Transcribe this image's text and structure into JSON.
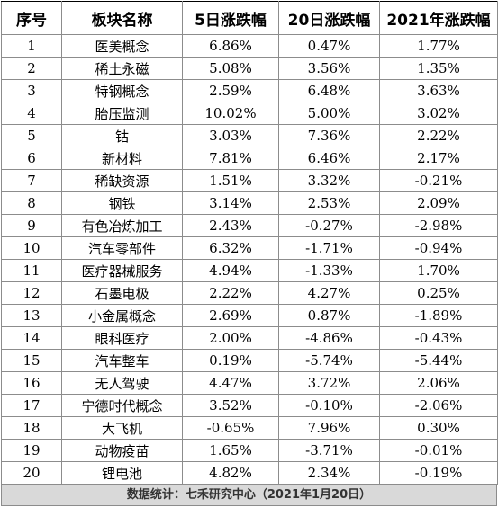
{
  "headers": [
    "序号",
    "板块名称",
    "5日涨跌幅",
    "20日涨跌幅",
    "2021年涨跌幅"
  ],
  "rows": [
    [
      "1",
      "医美概念",
      "6.86%",
      "0.47%",
      "1.77%"
    ],
    [
      "2",
      "稀土永磁",
      "5.08%",
      "3.56%",
      "1.35%"
    ],
    [
      "3",
      "特钢概念",
      "2.59%",
      "6.48%",
      "3.63%"
    ],
    [
      "4",
      "胎压监测",
      "10.02%",
      "5.00%",
      "3.02%"
    ],
    [
      "5",
      "钴",
      "3.03%",
      "7.36%",
      "2.22%"
    ],
    [
      "6",
      "新材料",
      "7.81%",
      "6.46%",
      "2.17%"
    ],
    [
      "7",
      "稀缺资源",
      "1.51%",
      "3.32%",
      "-0.21%"
    ],
    [
      "8",
      "钢铁",
      "3.14%",
      "2.53%",
      "2.09%"
    ],
    [
      "9",
      "有色冶炼加工",
      "2.43%",
      "-0.27%",
      "-2.98%"
    ],
    [
      "10",
      "汽车零部件",
      "6.32%",
      "-1.71%",
      "-0.94%"
    ],
    [
      "11",
      "医疗器械服务",
      "4.94%",
      "-1.33%",
      "1.70%"
    ],
    [
      "12",
      "石墨电极",
      "2.22%",
      "4.27%",
      "0.25%"
    ],
    [
      "13",
      "小金属概念",
      "2.69%",
      "0.87%",
      "-1.89%"
    ],
    [
      "14",
      "眼科医疗",
      "2.00%",
      "-4.86%",
      "-0.43%"
    ],
    [
      "15",
      "汽车整车",
      "0.19%",
      "-5.74%",
      "-5.44%"
    ],
    [
      "16",
      "无人驾驶",
      "4.47%",
      "3.72%",
      "2.06%"
    ],
    [
      "17",
      "宁德时代概念",
      "3.52%",
      "-0.10%",
      "-2.06%"
    ],
    [
      "18",
      "大飞机",
      "-0.65%",
      "7.96%",
      "0.30%"
    ],
    [
      "19",
      "动物疫苗",
      "1.65%",
      "-3.71%",
      "-0.01%"
    ],
    [
      "20",
      "锂电池",
      "4.82%",
      "2.34%",
      "-0.19%"
    ]
  ],
  "footer": "数据统计：七禾研究中心（2021年1月20日）"
}
